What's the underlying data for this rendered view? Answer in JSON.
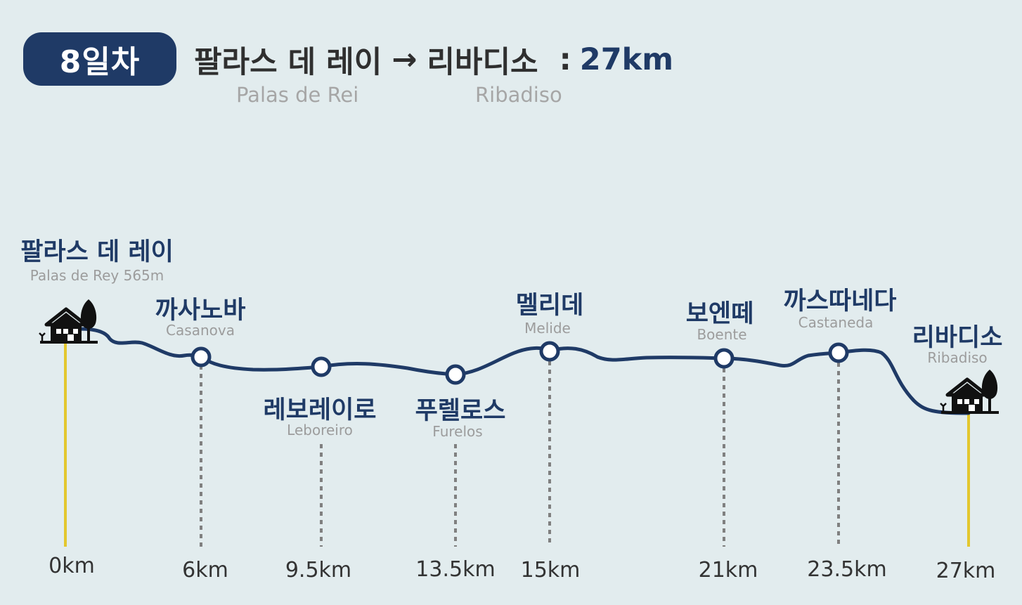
{
  "header": {
    "day_label": "8일차",
    "start_ko": "팔라스 데 레이",
    "arrow": "→",
    "end_ko": "리바디소",
    "separator": ":",
    "distance": "27km",
    "start_en": "Palas de Rei",
    "end_en": "Ribadiso"
  },
  "colors": {
    "background": "#e2ecee",
    "navy": "#1f3a66",
    "guide_yellow": "#e3c72e",
    "guide_gray": "#808080",
    "text_gray": "#9c9c9c"
  },
  "stops": [
    {
      "name_ko": "팔라스 데 레이",
      "name_en": "Palas de Rey 565m",
      "km": "0km",
      "type": "start",
      "icon": "house-with-tree-icon"
    },
    {
      "name_ko": "까사노바",
      "name_en": "Casanova",
      "km": "6km",
      "type": "waypoint"
    },
    {
      "name_ko": "레보레이로",
      "name_en": "Leboreiro",
      "km": "9.5km",
      "type": "waypoint"
    },
    {
      "name_ko": "푸렐로스",
      "name_en": "Furelos",
      "km": "13.5km",
      "type": "waypoint"
    },
    {
      "name_ko": "멜리데",
      "name_en": "Melide",
      "km": "15km",
      "type": "waypoint"
    },
    {
      "name_ko": "보엔떼",
      "name_en": "Boente",
      "km": "21km",
      "type": "waypoint"
    },
    {
      "name_ko": "까스따네다",
      "name_en": "Castaneda",
      "km": "23.5km",
      "type": "waypoint"
    },
    {
      "name_ko": "리바디소",
      "name_en": "Ribadiso",
      "km": "27km",
      "type": "end",
      "icon": "house-with-tree-icon"
    }
  ]
}
